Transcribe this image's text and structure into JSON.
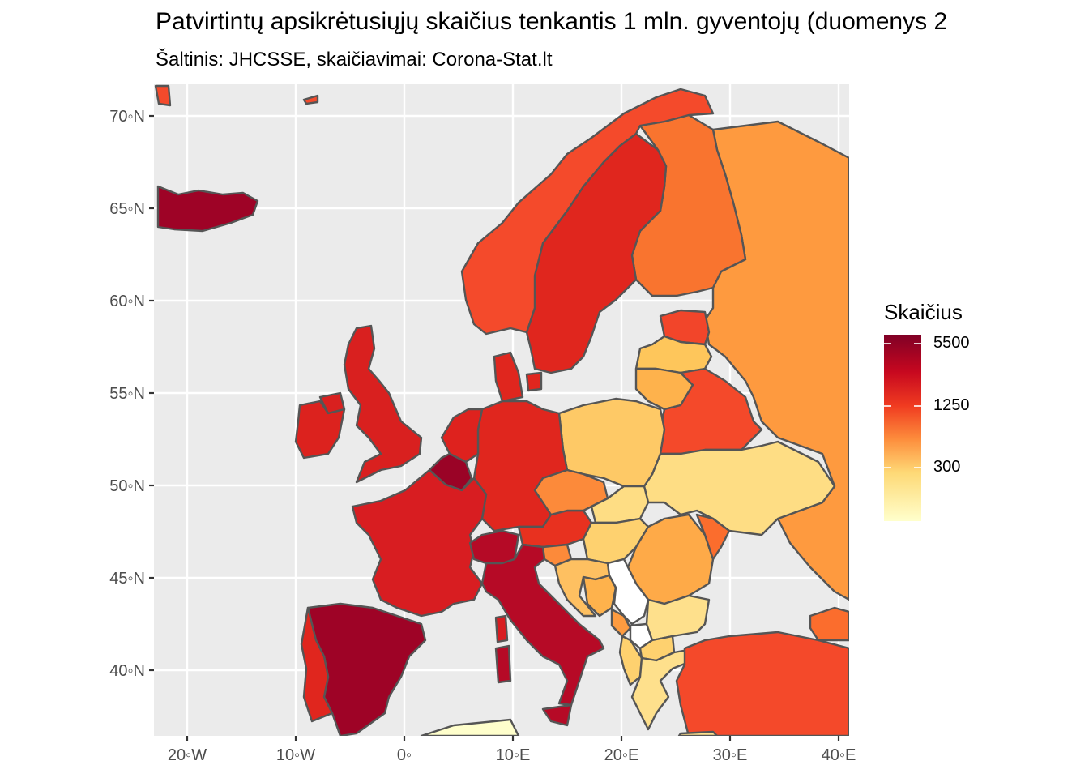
{
  "title": "Patvirtintų apsikrėtusiųjų skaičius tenkantis 1 mln. gyventojų (duomenys 2",
  "subtitle": "Šaltinis: JHCSSE, skaičiavimai: Corona-Stat.lt",
  "axes": {
    "lat_ticks": [
      "70◦N",
      "65◦N",
      "60◦N",
      "55◦N",
      "50◦N",
      "45◦N",
      "40◦N"
    ],
    "lon_ticks": [
      "20◦W",
      "10◦W",
      "0◦",
      "10◦E",
      "20◦E",
      "30◦E",
      "40◦E"
    ]
  },
  "legend": {
    "title": "Skaičius",
    "ticks": [
      "5500",
      "1250",
      "300"
    ],
    "scale": "log",
    "gradient_colors": [
      "#800026",
      "#e31a1c",
      "#fc4e2a",
      "#feb24c",
      "#fed976",
      "#ffffcc"
    ]
  },
  "colors": {
    "panel_bg": "#ebebeb",
    "grid": "#ffffff",
    "border": "#555555",
    "no_data": "#ffffff"
  },
  "regions": [
    {
      "name": "Iceland",
      "color": "#9e0326"
    },
    {
      "name": "Norway",
      "color": "#f44a2b"
    },
    {
      "name": "Sweden",
      "color": "#e0261e"
    },
    {
      "name": "Finland",
      "color": "#f9742f"
    },
    {
      "name": "Russia",
      "color": "#fe9a3f"
    },
    {
      "name": "Estonia",
      "color": "#f2452a"
    },
    {
      "name": "Latvia",
      "color": "#fec65b"
    },
    {
      "name": "Lithuania",
      "color": "#feb24c"
    },
    {
      "name": "Belarus",
      "color": "#f4492a"
    },
    {
      "name": "Ukraine",
      "color": "#fedd84"
    },
    {
      "name": "Poland",
      "color": "#fec966"
    },
    {
      "name": "Germany",
      "color": "#e0261e"
    },
    {
      "name": "Denmark",
      "color": "#e0261e"
    },
    {
      "name": "Netherlands",
      "color": "#de221e"
    },
    {
      "name": "Belgium",
      "color": "#9a0326"
    },
    {
      "name": "United Kingdom",
      "color": "#d9201f"
    },
    {
      "name": "Ireland",
      "color": "#dc221e"
    },
    {
      "name": "France",
      "color": "#d81d21"
    },
    {
      "name": "Switzerland",
      "color": "#b50a26"
    },
    {
      "name": "Austria",
      "color": "#e8311f"
    },
    {
      "name": "Czechia",
      "color": "#fc8a3a"
    },
    {
      "name": "Italy",
      "color": "#b60a26"
    },
    {
      "name": "Spain",
      "color": "#9e0326"
    },
    {
      "name": "Portugal",
      "color": "#e0261e"
    },
    {
      "name": "Slovakia",
      "color": "#fedd84"
    },
    {
      "name": "Hungary",
      "color": "#fed16f"
    },
    {
      "name": "Romania",
      "color": "#feaa48"
    },
    {
      "name": "Moldova",
      "color": "#fb6d2d"
    },
    {
      "name": "Slovenia",
      "color": "#fc8a3a"
    },
    {
      "name": "Croatia",
      "color": "#fec061"
    },
    {
      "name": "Bosnia",
      "color": "#feb24c"
    },
    {
      "name": "Serbia",
      "color": "#ffffff"
    },
    {
      "name": "Kosovo",
      "color": "#ffffff"
    },
    {
      "name": "Montenegro",
      "color": "#fd9b40"
    },
    {
      "name": "Bulgaria",
      "color": "#fee08c"
    },
    {
      "name": "North Macedonia",
      "color": "#fed16f"
    },
    {
      "name": "Albania",
      "color": "#fed16f"
    },
    {
      "name": "Greece",
      "color": "#fee08c"
    },
    {
      "name": "Turkey",
      "color": "#f4492a"
    },
    {
      "name": "Georgia",
      "color": "#fb6d2d"
    },
    {
      "name": "Algeria/Tunisia",
      "color": "#ffffcc"
    }
  ]
}
